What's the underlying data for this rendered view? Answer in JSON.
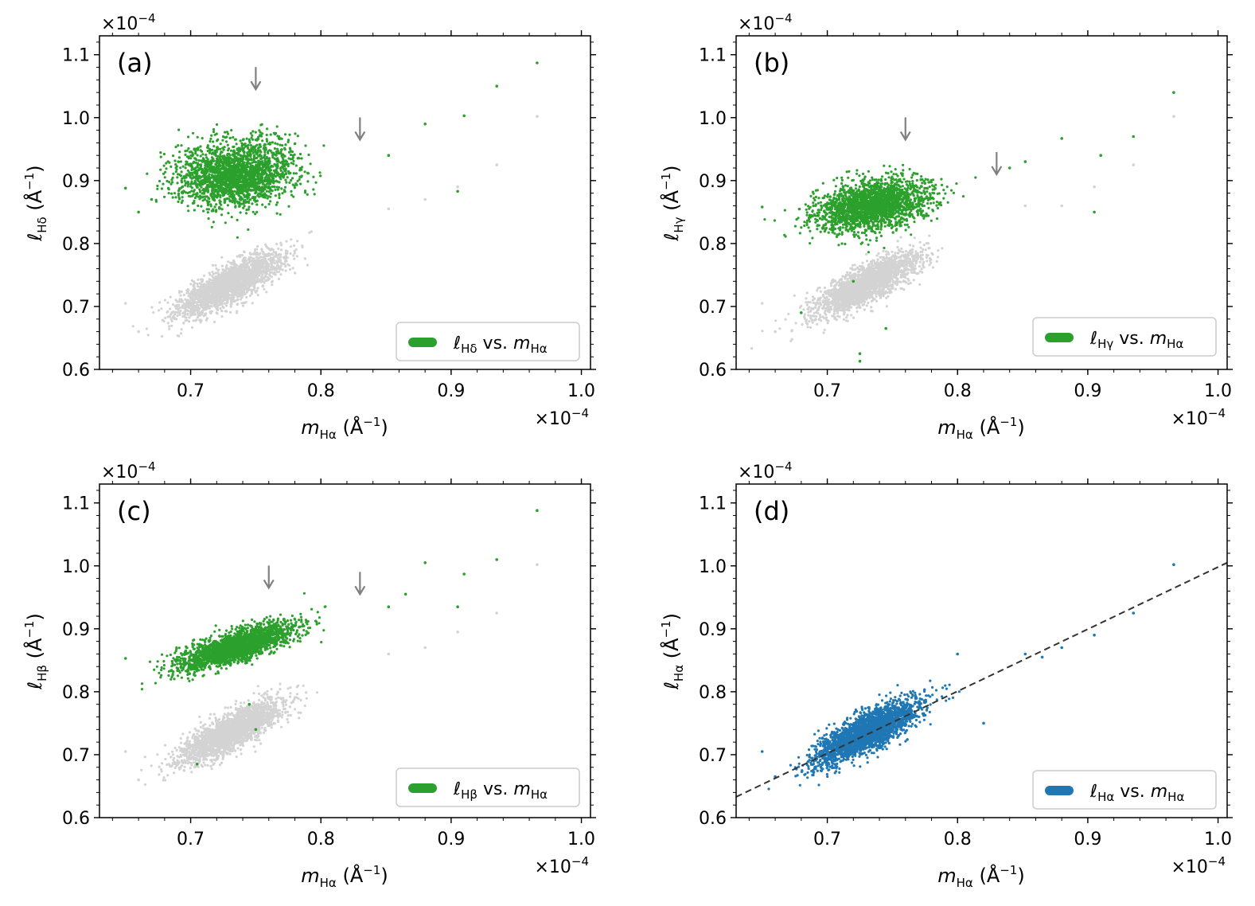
{
  "figure": {
    "colors": {
      "green": "#2ca02c",
      "blue": "#1f77b4",
      "gray": "#d3d3d3",
      "arrow": "#808080",
      "fit_line": "#333333"
    },
    "arrow_icon": "down-arrow-icon"
  },
  "chart_data": [
    {
      "type": "scatter",
      "panel_label": "(a)",
      "xlabel": {
        "sym": "m",
        "sub": "Hα",
        "unit": "(Å",
        "exp": "−1",
        "close": ")"
      },
      "ylabel": {
        "sym": "ℓ",
        "sub": "Hδ",
        "unit": "(Å",
        "exp": "−1",
        "close": ")"
      },
      "x_multiplier": "×10",
      "x_multiplier_exp": "−4",
      "y_multiplier": "×10",
      "y_multiplier_exp": "−4",
      "xlim": [
        0.63,
        1.007
      ],
      "ylim": [
        0.6,
        1.13
      ],
      "xticks": [
        "0.7",
        "0.8",
        "0.9",
        "1.0"
      ],
      "yticks": [
        "0.6",
        "0.7",
        "0.8",
        "0.9",
        "1.0",
        "1.1"
      ],
      "legend": {
        "sym": "ℓ",
        "sub": "Hδ",
        "mid": " vs. ",
        "sym2": "m",
        "sub2": "Hα",
        "color": "#2ca02c",
        "position": "lower right"
      },
      "cluster": {
        "n": 2200,
        "cx": 0.735,
        "cy": 0.91,
        "sx": 0.022,
        "sy": 0.026,
        "rho": 0.1,
        "color": "#2ca02c"
      },
      "background": {
        "n": 2200,
        "cx": 0.73,
        "cy": 0.735,
        "sx": 0.02,
        "sy": 0.025,
        "rho": 0.8,
        "color": "#d3d3d3"
      },
      "outliers_green": [
        [
          0.65,
          0.888
        ],
        [
          0.66,
          0.85
        ],
        [
          0.67,
          0.87
        ],
        [
          0.88,
          0.99
        ],
        [
          0.905,
          0.883
        ],
        [
          0.91,
          1.003
        ],
        [
          0.935,
          1.05
        ],
        [
          0.966,
          1.087
        ],
        [
          0.852,
          0.94
        ]
      ],
      "outliers_gray": [
        [
          0.65,
          0.705
        ],
        [
          0.66,
          0.66
        ],
        [
          0.88,
          0.87
        ],
        [
          0.905,
          0.89
        ],
        [
          0.935,
          0.925
        ],
        [
          0.966,
          1.002
        ],
        [
          0.852,
          0.855
        ]
      ],
      "arrows": [
        [
          0.75,
          1.045
        ],
        [
          0.83,
          0.965
        ]
      ],
      "fit_line": null
    },
    {
      "type": "scatter",
      "panel_label": "(b)",
      "xlabel": {
        "sym": "m",
        "sub": "Hα",
        "unit": "(Å",
        "exp": "−1",
        "close": ")"
      },
      "ylabel": {
        "sym": "ℓ",
        "sub": "Hγ",
        "unit": "(Å",
        "exp": "−1",
        "close": ")"
      },
      "x_multiplier": "×10",
      "x_multiplier_exp": "−4",
      "y_multiplier": "×10",
      "y_multiplier_exp": "−4",
      "xlim": [
        0.63,
        1.007
      ],
      "ylim": [
        0.6,
        1.13
      ],
      "xticks": [
        "0.7",
        "0.8",
        "0.9",
        "1.0"
      ],
      "yticks": [
        "0.6",
        "0.7",
        "0.8",
        "0.9",
        "1.0",
        "1.1"
      ],
      "legend": {
        "sym": "ℓ",
        "sub": "Hγ",
        "mid": " vs. ",
        "sym2": "m",
        "sub2": "Hα",
        "color": "#2ca02c",
        "position": "lower right"
      },
      "cluster": {
        "n": 2200,
        "cx": 0.735,
        "cy": 0.86,
        "sx": 0.022,
        "sy": 0.02,
        "rho": 0.3,
        "color": "#2ca02c"
      },
      "background": {
        "n": 2200,
        "cx": 0.73,
        "cy": 0.735,
        "sx": 0.02,
        "sy": 0.025,
        "rho": 0.8,
        "color": "#d3d3d3"
      },
      "outliers_green": [
        [
          0.65,
          0.858
        ],
        [
          0.68,
          0.69
        ],
        [
          0.725,
          0.613
        ],
        [
          0.725,
          0.625
        ],
        [
          0.745,
          0.665
        ],
        [
          0.72,
          0.74
        ],
        [
          0.88,
          0.967
        ],
        [
          0.905,
          0.85
        ],
        [
          0.91,
          0.94
        ],
        [
          0.935,
          0.97
        ],
        [
          0.966,
          1.04
        ],
        [
          0.84,
          0.92
        ],
        [
          0.852,
          0.93
        ]
      ],
      "outliers_gray": [
        [
          0.65,
          0.705
        ],
        [
          0.66,
          0.66
        ],
        [
          0.88,
          0.86
        ],
        [
          0.905,
          0.89
        ],
        [
          0.935,
          0.925
        ],
        [
          0.966,
          1.002
        ],
        [
          0.852,
          0.86
        ]
      ],
      "arrows": [
        [
          0.76,
          0.965
        ],
        [
          0.83,
          0.91
        ]
      ],
      "fit_line": null
    },
    {
      "type": "scatter",
      "panel_label": "(c)",
      "xlabel": {
        "sym": "m",
        "sub": "Hα",
        "unit": "(Å",
        "exp": "−1",
        "close": ")"
      },
      "ylabel": {
        "sym": "ℓ",
        "sub": "Hβ",
        "unit": "(Å",
        "exp": "−1",
        "close": ")"
      },
      "x_multiplier": "×10",
      "x_multiplier_exp": "−4",
      "y_multiplier": "×10",
      "y_multiplier_exp": "−4",
      "xlim": [
        0.63,
        1.007
      ],
      "ylim": [
        0.6,
        1.13
      ],
      "xticks": [
        "0.7",
        "0.8",
        "0.9",
        "1.0"
      ],
      "yticks": [
        "0.6",
        "0.7",
        "0.8",
        "0.9",
        "1.0",
        "1.1"
      ],
      "legend": {
        "sym": "ℓ",
        "sub": "Hβ",
        "mid": " vs. ",
        "sym2": "m",
        "sub2": "Hα",
        "color": "#2ca02c",
        "position": "lower right"
      },
      "cluster": {
        "n": 2200,
        "cx": 0.735,
        "cy": 0.872,
        "sx": 0.022,
        "sy": 0.018,
        "rho": 0.75,
        "color": "#2ca02c"
      },
      "background": {
        "n": 2200,
        "cx": 0.73,
        "cy": 0.735,
        "sx": 0.02,
        "sy": 0.025,
        "rho": 0.8,
        "color": "#d3d3d3"
      },
      "outliers_green": [
        [
          0.65,
          0.853
        ],
        [
          0.745,
          0.78
        ],
        [
          0.75,
          0.74
        ],
        [
          0.705,
          0.685
        ],
        [
          0.88,
          1.005
        ],
        [
          0.905,
          0.935
        ],
        [
          0.91,
          0.987
        ],
        [
          0.935,
          1.01
        ],
        [
          0.966,
          1.088
        ],
        [
          0.852,
          0.935
        ],
        [
          0.865,
          0.955
        ]
      ],
      "outliers_gray": [
        [
          0.65,
          0.705
        ],
        [
          0.66,
          0.66
        ],
        [
          0.88,
          0.87
        ],
        [
          0.905,
          0.895
        ],
        [
          0.935,
          0.925
        ],
        [
          0.966,
          1.002
        ],
        [
          0.852,
          0.86
        ]
      ],
      "arrows": [
        [
          0.76,
          0.965
        ],
        [
          0.83,
          0.955
        ]
      ],
      "fit_line": null
    },
    {
      "type": "scatter",
      "panel_label": "(d)",
      "xlabel": {
        "sym": "m",
        "sub": "Hα",
        "unit": "(Å",
        "exp": "−1",
        "close": ")"
      },
      "ylabel": {
        "sym": "ℓ",
        "sub": "Hα",
        "unit": "(Å",
        "exp": "−1",
        "close": ")"
      },
      "x_multiplier": "×10",
      "x_multiplier_exp": "−4",
      "y_multiplier": "×10",
      "y_multiplier_exp": "−4",
      "xlim": [
        0.63,
        1.007
      ],
      "ylim": [
        0.6,
        1.13
      ],
      "xticks": [
        "0.7",
        "0.8",
        "0.9",
        "1.0"
      ],
      "yticks": [
        "0.6",
        "0.7",
        "0.8",
        "0.9",
        "1.0",
        "1.1"
      ],
      "legend": {
        "sym": "ℓ",
        "sub": "Hα",
        "mid": " vs. ",
        "sym2": "m",
        "sub2": "Hα",
        "color": "#1f77b4",
        "position": "lower right"
      },
      "cluster": {
        "n": 2600,
        "cx": 0.73,
        "cy": 0.735,
        "sx": 0.02,
        "sy": 0.025,
        "rho": 0.8,
        "color": "#1f77b4"
      },
      "background": null,
      "outliers_green": [],
      "outliers_blue": [
        [
          0.65,
          0.705
        ],
        [
          0.66,
          0.665
        ],
        [
          0.88,
          0.87
        ],
        [
          0.905,
          0.89
        ],
        [
          0.935,
          0.925
        ],
        [
          0.966,
          1.002
        ],
        [
          0.852,
          0.86
        ],
        [
          0.865,
          0.855
        ],
        [
          0.8,
          0.86
        ],
        [
          0.82,
          0.75
        ]
      ],
      "outliers_gray": [],
      "arrows": [],
      "fit_line": {
        "x": [
          0.63,
          1.007
        ],
        "y": [
          0.633,
          1.005
        ],
        "style": "dashed",
        "color": "#333333"
      }
    }
  ]
}
